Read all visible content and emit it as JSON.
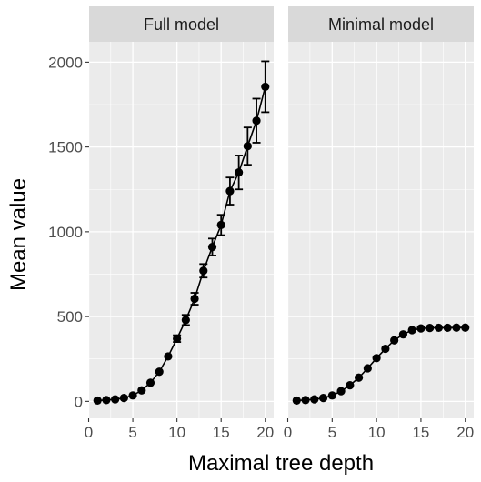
{
  "chart_data": {
    "type": "line",
    "xlabel": "Maximal tree depth",
    "ylabel": "Mean value",
    "xlim": [
      0.05,
      20.95
    ],
    "ylim": [
      -100,
      2120
    ],
    "x_ticks": [
      0,
      5,
      10,
      15,
      20
    ],
    "y_ticks": [
      0,
      500,
      1000,
      1500,
      2000
    ],
    "grid": true,
    "error_bars": true,
    "panels": [
      {
        "title": "Full model",
        "x": [
          1,
          2,
          3,
          4,
          5,
          6,
          7,
          8,
          9,
          10,
          11,
          12,
          13,
          14,
          15,
          16,
          17,
          18,
          19,
          20
        ],
        "y": [
          5,
          8,
          12,
          20,
          35,
          65,
          110,
          175,
          265,
          370,
          480,
          605,
          770,
          910,
          1040,
          1240,
          1350,
          1505,
          1655,
          1855
        ],
        "err": [
          3,
          3,
          4,
          5,
          6,
          8,
          10,
          12,
          15,
          20,
          30,
          35,
          40,
          50,
          60,
          80,
          100,
          110,
          130,
          150
        ]
      },
      {
        "title": "Minimal model",
        "x": [
          1,
          2,
          3,
          4,
          5,
          6,
          7,
          8,
          9,
          10,
          11,
          12,
          13,
          14,
          15,
          16,
          17,
          18,
          19,
          20
        ],
        "y": [
          5,
          8,
          12,
          20,
          35,
          60,
          95,
          140,
          195,
          255,
          310,
          360,
          395,
          420,
          430,
          433,
          434,
          434,
          435,
          435
        ],
        "err": [
          2,
          2,
          2,
          3,
          3,
          4,
          4,
          5,
          5,
          6,
          6,
          6,
          6,
          6,
          6,
          6,
          6,
          6,
          6,
          6
        ]
      }
    ]
  }
}
